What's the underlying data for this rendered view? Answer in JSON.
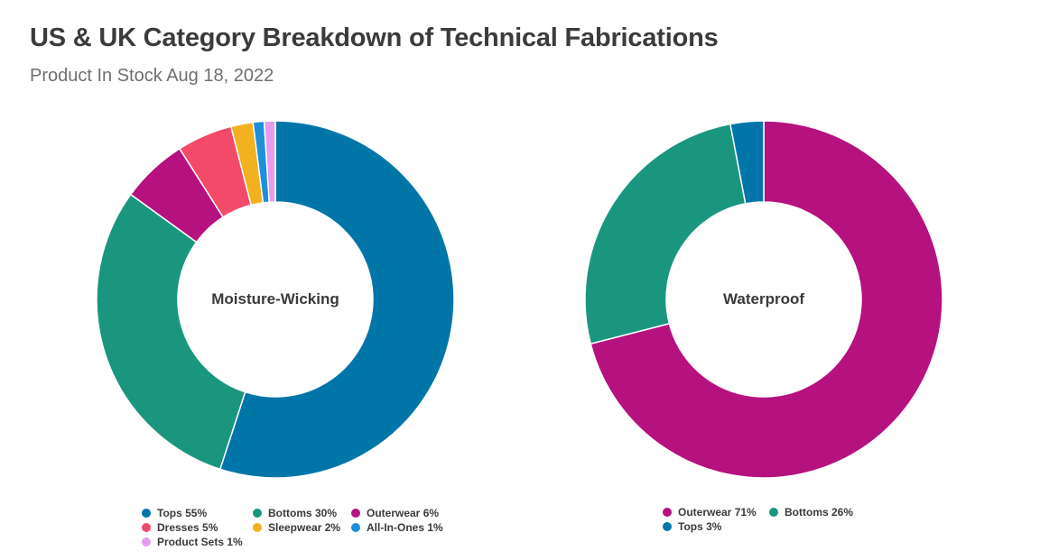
{
  "title": "US & UK Category Breakdown of Technical Fabrications",
  "subtitle": "Product In Stock Aug 18, 2022",
  "chart_data": [
    {
      "type": "pie",
      "variant": "donut",
      "center_label": "Moisture-Wicking",
      "slices": [
        {
          "label": "Tops",
          "value": 55,
          "color": "#0076a8",
          "legend": "Tops 55%"
        },
        {
          "label": "Bottoms",
          "value": 30,
          "color": "#1a967f",
          "legend": "Bottoms 30%"
        },
        {
          "label": "Outerwear",
          "value": 6,
          "color": "#b5117f",
          "legend": "Outerwear 6%"
        },
        {
          "label": "Dresses",
          "value": 5,
          "color": "#f24a68",
          "legend": "Dresses 5%"
        },
        {
          "label": "Sleepwear",
          "value": 2,
          "color": "#f2b11e",
          "legend": "Sleepwear 2%"
        },
        {
          "label": "All-In-Ones",
          "value": 1,
          "color": "#1e8fdc",
          "legend": "All-In-Ones 1%"
        },
        {
          "label": "Product Sets",
          "value": 1,
          "color": "#e59cf0",
          "legend": "Product Sets 1%"
        }
      ]
    },
    {
      "type": "pie",
      "variant": "donut",
      "center_label": "Waterproof",
      "slices": [
        {
          "label": "Outerwear",
          "value": 71,
          "color": "#b5117f",
          "legend": "Outerwear 71%"
        },
        {
          "label": "Bottoms",
          "value": 26,
          "color": "#1a967f",
          "legend": "Bottoms 26%"
        },
        {
          "label": "Tops",
          "value": 3,
          "color": "#0076a8",
          "legend": "Tops 3%"
        }
      ]
    }
  ]
}
